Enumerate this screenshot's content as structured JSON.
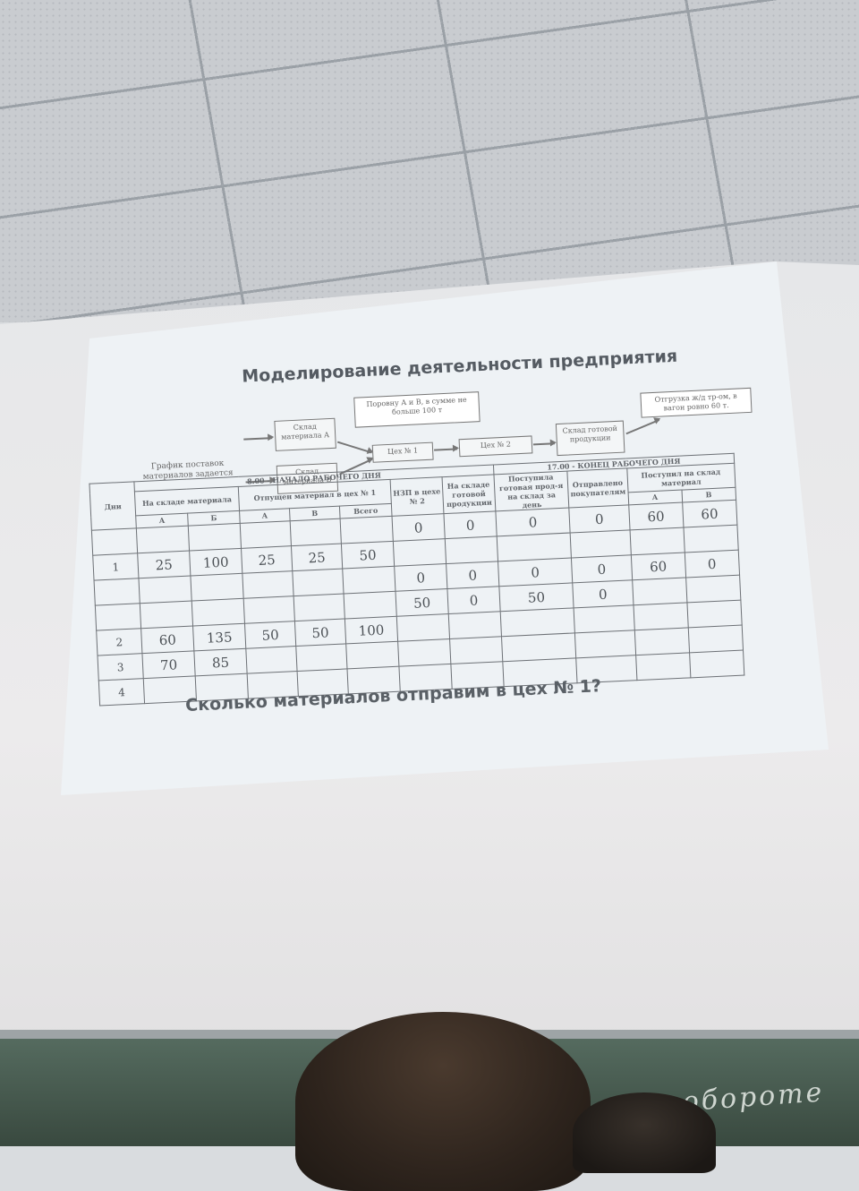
{
  "slide": {
    "title": "Моделирование деятельности предприятия",
    "question": "Сколько материалов отправим в цех № 1?"
  },
  "diagram": {
    "supply_note": "График поставок материалов задается",
    "warehouse_a": "Склад материала А",
    "warehouse_b": "Склад материала В",
    "callout_ab": "Поровну А и В, в сумме не больше 100 т",
    "shop1": "Цех № 1",
    "shop2": "Цех № 2",
    "finished_warehouse": "Склад готовой продукции",
    "callout_ship": "Отгрузка ж/д тр-ом, в вагон ровно 60 т."
  },
  "table": {
    "group_start": "8.00 - НАЧАЛО РАБОЧЕГО ДНЯ",
    "group_end": "17.00 - КОНЕЦ РАБОЧЕГО ДНЯ",
    "col_days": "Дни",
    "col_stock": "На складе материала",
    "col_released": "Отпущен материал в цех № 1",
    "col_wip": "НЗП в цехе № 2",
    "col_finished": "На складе готовой продукции",
    "col_received_products": "Поступила готовая прод-я на склад за день",
    "col_shipped": "Отправлено покупателям",
    "col_received_material": "Поступил на склад материал",
    "sub_a": "А",
    "sub_b": "Б",
    "sub_a2": "А",
    "sub_b2": "В",
    "sub_total": "Всего",
    "sub_a3": "А",
    "sub_b3": "В",
    "rows": [
      {
        "day": "",
        "stock_a": "",
        "stock_b": "",
        "rel_a": "",
        "rel_b": "",
        "rel_total": "",
        "wip": "0",
        "finished": "0",
        "received": "0",
        "shipped": "0",
        "in_a": "60",
        "in_b": "60"
      },
      {
        "day": "1",
        "stock_a": "25",
        "stock_b": "100",
        "rel_a": "25",
        "rel_b": "25",
        "rel_total": "50",
        "wip": "",
        "finished": "",
        "received": "",
        "shipped": "",
        "in_a": "",
        "in_b": ""
      },
      {
        "day": "",
        "stock_a": "",
        "stock_b": "",
        "rel_a": "",
        "rel_b": "",
        "rel_total": "",
        "wip": "0",
        "finished": "0",
        "received": "0",
        "shipped": "0",
        "in_a": "60",
        "in_b": "0"
      },
      {
        "day": "",
        "stock_a": "",
        "stock_b": "",
        "rel_a": "",
        "rel_b": "",
        "rel_total": "",
        "wip": "50",
        "finished": "0",
        "received": "50",
        "shipped": "0",
        "in_a": "",
        "in_b": ""
      },
      {
        "day": "2",
        "stock_a": "60",
        "stock_b": "135",
        "rel_a": "50",
        "rel_b": "50",
        "rel_total": "100",
        "wip": "",
        "finished": "",
        "received": "",
        "shipped": "",
        "in_a": "",
        "in_b": ""
      },
      {
        "day": "3",
        "stock_a": "70",
        "stock_b": "85",
        "rel_a": "",
        "rel_b": "",
        "rel_total": "",
        "wip": "",
        "finished": "",
        "received": "",
        "shipped": "",
        "in_a": "",
        "in_b": ""
      },
      {
        "day": "4",
        "stock_a": "",
        "stock_b": "",
        "rel_a": "",
        "rel_b": "",
        "rel_total": "",
        "wip": "",
        "finished": "",
        "received": "",
        "shipped": "",
        "in_a": "",
        "in_b": ""
      }
    ]
  },
  "chalkboard": {
    "text": "На обороте"
  }
}
